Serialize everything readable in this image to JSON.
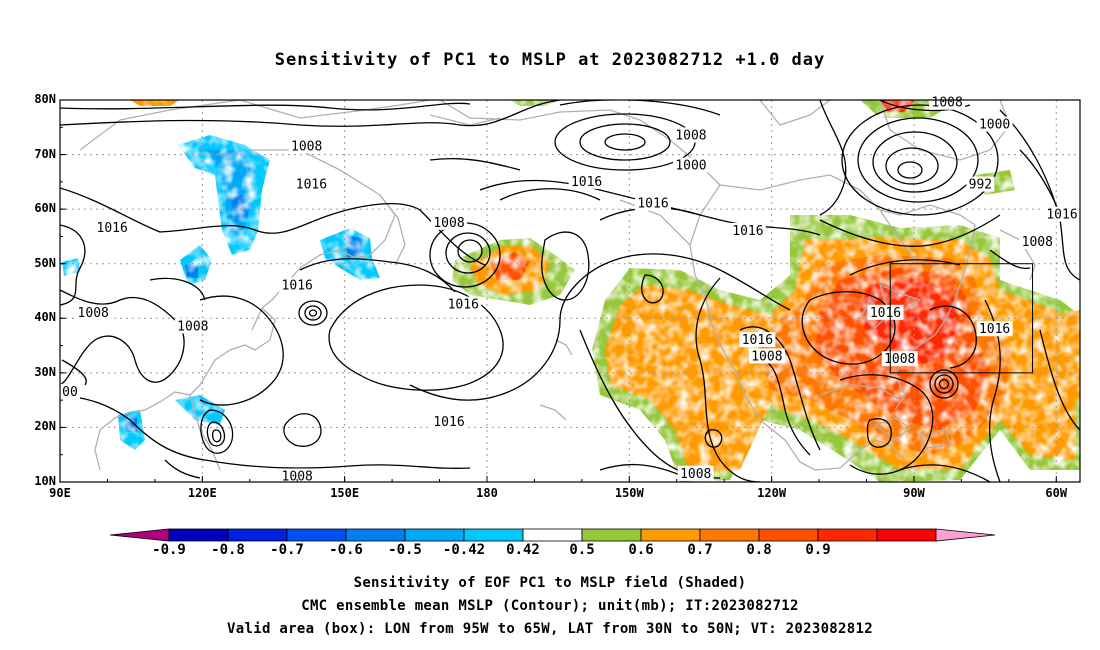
{
  "title": "Sensitivity of PC1 to MSLP at 2023082712 +1.0 day",
  "axes": {
    "lat_labels": [
      "80N",
      "70N",
      "60N",
      "50N",
      "40N",
      "30N",
      "20N",
      "10N"
    ],
    "lon_labels": [
      "90E",
      "120E",
      "150E",
      "180",
      "150W",
      "120W",
      "90W",
      "60W"
    ]
  },
  "map": {
    "lon_range": [
      90,
      305
    ],
    "lat_range": [
      10,
      80
    ],
    "grid": true
  },
  "colorbar": {
    "labels": [
      "-0.9",
      "-0.8",
      "-0.7",
      "-0.6",
      "-0.5",
      "-0.42",
      "0.42",
      "0.5",
      "0.6",
      "0.7",
      "0.8",
      "0.9"
    ],
    "colors": [
      "#b0007f",
      "#0000b8",
      "#0020e0",
      "#0050f0",
      "#0080f0",
      "#00a8f8",
      "#00c8ff",
      "#ffffff",
      "#96c83c",
      "#ff9a00",
      "#ff7800",
      "#ff5000",
      "#ff2800",
      "#ff0000",
      "#ff9ed2"
    ]
  },
  "valid_box": {
    "lon": [
      265,
      295
    ],
    "lat": [
      30,
      50
    ]
  },
  "contour_labels": [
    {
      "text": "1008",
      "lon": 142,
      "lat": 71.5
    },
    {
      "text": "1016",
      "lon": 143,
      "lat": 64.5
    },
    {
      "text": "1016",
      "lon": 101,
      "lat": 56.5
    },
    {
      "text": "1016",
      "lon": 140,
      "lat": 46
    },
    {
      "text": "1008",
      "lon": 97,
      "lat": 41
    },
    {
      "text": "1008",
      "lon": 118,
      "lat": 38.5
    },
    {
      "text": "00",
      "lon": 91,
      "lat": 26.5
    },
    {
      "text": "1008",
      "lon": 172,
      "lat": 57.5
    },
    {
      "text": "1016",
      "lon": 175,
      "lat": 42.5
    },
    {
      "text": "1016",
      "lon": 172,
      "lat": 21
    },
    {
      "text": "1008",
      "lon": 140,
      "lat": 11
    },
    {
      "text": "1016",
      "lon": 201,
      "lat": 65
    },
    {
      "text": "1008",
      "lon": 223,
      "lat": 73.5
    },
    {
      "text": "1000",
      "lon": 223,
      "lat": 68
    },
    {
      "text": "1016",
      "lon": 215,
      "lat": 61
    },
    {
      "text": "1016",
      "lon": 235,
      "lat": 56
    },
    {
      "text": "1016",
      "lon": 237,
      "lat": 36
    },
    {
      "text": "1008",
      "lon": 239,
      "lat": 33
    },
    {
      "text": "1008",
      "lon": 224,
      "lat": 11.5
    },
    {
      "text": "1008",
      "lon": 277,
      "lat": 79.5
    },
    {
      "text": "1000",
      "lon": 287,
      "lat": 75.5
    },
    {
      "text": "992",
      "lon": 284,
      "lat": 64.5
    },
    {
      "text": "1008",
      "lon": 296,
      "lat": 54
    },
    {
      "text": "1016",
      "lon": 302,
      "lat": 59
    },
    {
      "text": "1016",
      "lon": 264,
      "lat": 41
    },
    {
      "text": "1016",
      "lon": 287,
      "lat": 38
    },
    {
      "text": "1008",
      "lon": 267,
      "lat": 32.5
    }
  ],
  "footer": {
    "line1": "Sensitivity of EOF PC1 to MSLP field (Shaded)",
    "line2": "CMC ensemble mean MSLP (Contour); unit(mb); IT:2023082712",
    "line3": "Valid area (box): LON from 95W to 65W, LAT from 30N to 50N; VT: 2023082812"
  }
}
